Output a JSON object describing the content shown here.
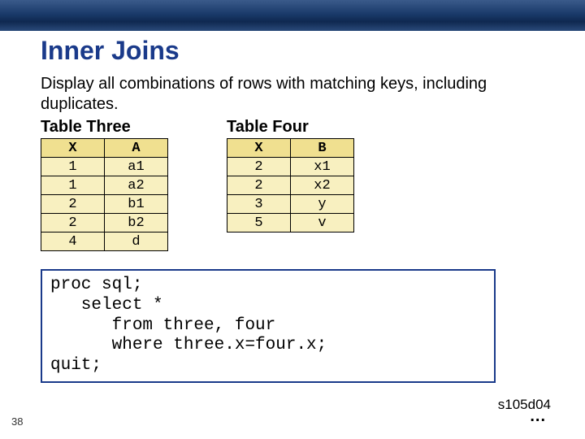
{
  "title_color": "#1a3a8a",
  "title": "Inner Joins",
  "intro": "Display all combinations of rows with matching keys, including duplicates.",
  "table_three": {
    "caption": "Table Three",
    "columns": [
      "X",
      "A"
    ],
    "rows": [
      [
        "1",
        "a1"
      ],
      [
        "1",
        "a2"
      ],
      [
        "2",
        "b1"
      ],
      [
        "2",
        "b2"
      ],
      [
        "4",
        "d"
      ]
    ],
    "header_bg": "#f0e090",
    "cell_bg": "#f8f0c0",
    "border_color": "#000000"
  },
  "table_four": {
    "caption": "Table Four",
    "columns": [
      "X",
      "B"
    ],
    "rows": [
      [
        "2",
        "x1"
      ],
      [
        "2",
        "x2"
      ],
      [
        "3",
        "y"
      ],
      [
        "5",
        "v"
      ]
    ],
    "header_bg": "#f0e090",
    "cell_bg": "#f8f0c0",
    "border_color": "#000000"
  },
  "code": {
    "line1": "proc sql;",
    "line2": "   select *",
    "line3": "      from three, four",
    "line4": "      where three.x=four.x;",
    "line5": "quit;",
    "border_color": "#1a3a8a"
  },
  "page_number": "38",
  "ref_id": "s105d04",
  "continuation": "..."
}
